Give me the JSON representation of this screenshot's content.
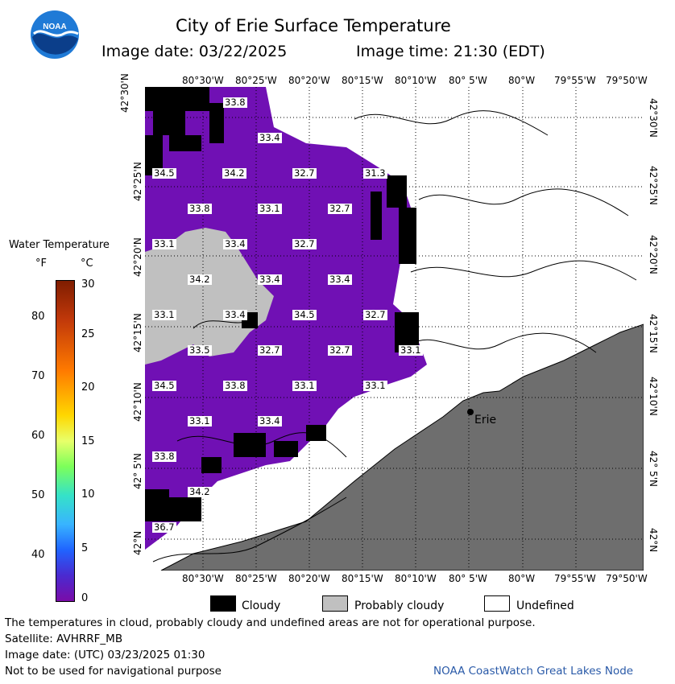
{
  "header": {
    "title": "City of Erie Surface Temperature",
    "date_label": "Image date: 03/22/2025",
    "time_label": "Image time: 21:30 (EDT)"
  },
  "logo_text": "NOAA",
  "axes": {
    "lon_ticks": [
      "80°30'W",
      "80°25'W",
      "80°20'W",
      "80°15'W",
      "80°10'W",
      "80° 5'W",
      "80°W",
      "79°55'W",
      "79°50'W"
    ],
    "lat_ticks": [
      "42°30'N",
      "42°25'N",
      "42°20'N",
      "42°15'N",
      "42°10'N",
      "42° 5'N",
      "42°N"
    ]
  },
  "colorbar": {
    "title": "Water Temperature",
    "unit_f": "°F",
    "unit_c": "°C",
    "f_ticks": [
      "80",
      "70",
      "60",
      "50",
      "40"
    ],
    "c_ticks": [
      "30",
      "25",
      "20",
      "15",
      "10",
      "5",
      "0"
    ]
  },
  "temperature_labels": [
    {
      "text": "33.8"
    },
    {
      "text": "33.4"
    },
    {
      "text": "34.5"
    },
    {
      "text": "34.2"
    },
    {
      "text": "32.7"
    },
    {
      "text": "31.3"
    },
    {
      "text": "33.8"
    },
    {
      "text": "33.1"
    },
    {
      "text": "32.7"
    },
    {
      "text": "33.1"
    },
    {
      "text": "33.4"
    },
    {
      "text": "32.7"
    },
    {
      "text": "34.2"
    },
    {
      "text": "33.4"
    },
    {
      "text": "33.4"
    },
    {
      "text": "33.1"
    },
    {
      "text": "33.4"
    },
    {
      "text": "34.5"
    },
    {
      "text": "32.7"
    },
    {
      "text": "33.5"
    },
    {
      "text": "32.7"
    },
    {
      "text": "32.7"
    },
    {
      "text": "33.1"
    },
    {
      "text": "34.5"
    },
    {
      "text": "33.8"
    },
    {
      "text": "33.1"
    },
    {
      "text": "33.1"
    },
    {
      "text": "33.1"
    },
    {
      "text": "33.4"
    },
    {
      "text": "33.8"
    },
    {
      "text": "34.2"
    },
    {
      "text": "36.7"
    }
  ],
  "city_label": "Erie",
  "legend": {
    "cloudy": "Cloudy",
    "probably_cloudy": "Probably cloudy",
    "undefined": "Undefined"
  },
  "footer": {
    "note": "The temperatures in cloud, probably cloudy and undefined areas are not for operational purpose.",
    "satellite": "Satellite: AVHRRF_MB",
    "utc_date": "Image date: (UTC) 03/23/2025  01:30",
    "nav_warning": "Not to be used for navigational purpose",
    "credit": "NOAA CoastWatch Great Lakes Node"
  },
  "colors": {
    "water": "#7010b4",
    "cloud": "#000000",
    "probably_cloud": "#c0c0c0",
    "land": "#6e6e6e",
    "credit_text": "#2a5aa8"
  }
}
